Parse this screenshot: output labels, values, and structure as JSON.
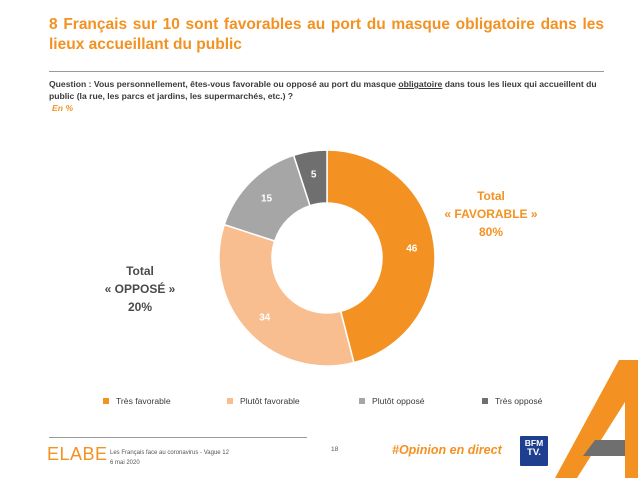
{
  "header": {
    "title": "8 Français sur 10 sont favorables au port du masque obligatoire dans les lieux accueillant du public",
    "question_prefix": "Question : Vous personnellement, êtes-vous favorable ou opposé au port du masque ",
    "question_underlined": "obligatoire",
    "question_suffix": " dans tous les lieux qui accueillent du public (la rue, les parcs et jardins, les supermarchés, etc.) ?",
    "unit": "En %"
  },
  "totals": {
    "favorable_line1": "Total",
    "favorable_line2": "« FAVORABLE »",
    "favorable_value": "80%",
    "oppose_line1": "Total",
    "oppose_line2": "« OPPOSÉ »",
    "oppose_value": "20%"
  },
  "chart_data": {
    "type": "pie",
    "style": "donut",
    "categories": [
      "Très favorable",
      "Plutôt favorable",
      "Plutôt opposé",
      "Très opposé"
    ],
    "values": [
      46,
      34,
      15,
      5
    ],
    "colors": [
      "#f39222",
      "#f9be8f",
      "#a6a6a6",
      "#6f6f6f"
    ],
    "label_colors": [
      "#ffffff",
      "#ffffff",
      "#ffffff",
      "#ffffff"
    ],
    "start_angle_deg": 0,
    "direction": "clockwise",
    "legend_position": "bottom"
  },
  "footer": {
    "logo": "ELABE",
    "line1": "Les Français face au coronavirus - Vague 12",
    "line2": "6 mai 2020",
    "page": "18",
    "hashtag": "#Opinion en direct",
    "bfm_line1": "BFM",
    "bfm_line2": "TV."
  },
  "colors": {
    "accent": "#f39222",
    "text_dark": "#3a3a3a",
    "bfm_blue": "#1e3f8f"
  }
}
